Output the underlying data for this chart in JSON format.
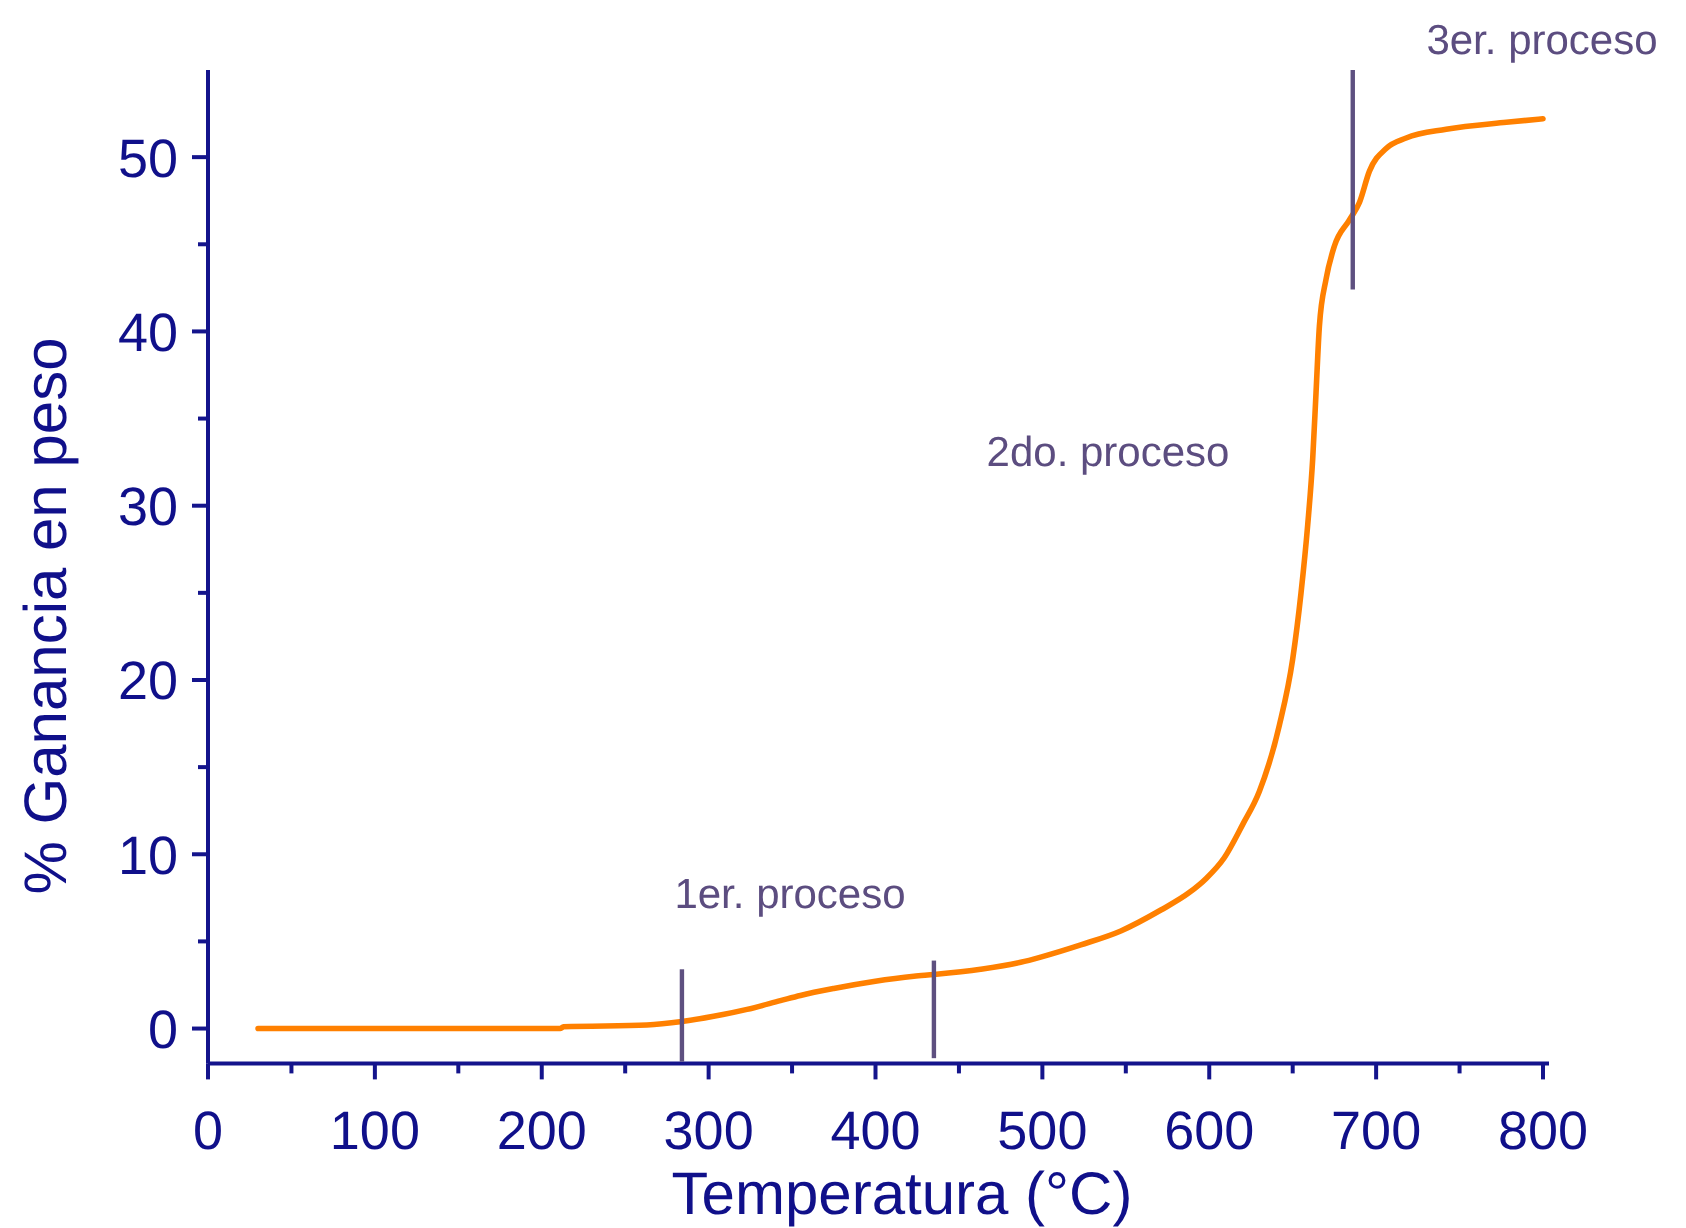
{
  "chart_data": {
    "type": "line",
    "xlabel": "Temperatura (°C)",
    "ylabel": "% Ganancia en peso",
    "xlim": [
      0,
      800
    ],
    "ylim": [
      -2,
      55
    ],
    "xticks": [
      0,
      {
        "value": 50,
        "label": null
      },
      100,
      {
        "value": 150,
        "label": null
      },
      200,
      {
        "value": 250,
        "label": null
      },
      300,
      {
        "value": 350,
        "label": null
      },
      400,
      {
        "value": 450,
        "label": null
      },
      500,
      {
        "value": 550,
        "label": null
      },
      600,
      {
        "value": 650,
        "label": null
      },
      700,
      {
        "value": 750,
        "label": null
      },
      800
    ],
    "yticks": [
      0,
      {
        "value": 5,
        "label": null
      },
      10,
      {
        "value": 15,
        "label": null
      },
      20,
      {
        "value": 25,
        "label": null
      },
      30,
      {
        "value": 35,
        "label": null
      },
      40,
      {
        "value": 45,
        "label": null
      },
      50
    ],
    "series": [
      {
        "color": "#ff8000",
        "x": [
          30,
          100,
          150,
          211,
          213,
          263,
          284,
          303,
          323,
          343,
          355,
          375,
          399,
          423,
          435,
          463,
          487,
          499,
          523,
          547,
          571,
          588,
          598,
          609,
          620,
          630,
          642,
          650,
          655,
          659,
          662,
          664,
          666,
          670,
          675,
          684,
          690,
          696,
          706,
          718,
          742,
          778,
          800
        ],
        "values": [
          0,
          0,
          0,
          0,
          0.1,
          0.2,
          0.4,
          0.7,
          1.1,
          1.6,
          1.9,
          2.3,
          2.7,
          3.0,
          3.1,
          3.4,
          3.8,
          4.1,
          4.8,
          5.6,
          6.8,
          7.8,
          8.6,
          9.8,
          11.7,
          13.6,
          17.4,
          21.2,
          25.0,
          28.9,
          32.7,
          36.5,
          40.3,
          43.0,
          44.9,
          46.4,
          47.4,
          49.2,
          50.5,
          51.1,
          51.6,
          52.0,
          52.2
        ]
      },
      {
        "type": "line",
        "color": "#5e5080",
        "x": [
          284,
          284
        ],
        "values": [
          -1.9,
          3.4
        ]
      },
      {
        "type": "line",
        "color": "#5e5080",
        "x": [
          435,
          435
        ],
        "values": [
          -1.7,
          3.9
        ]
      },
      {
        "type": "line",
        "color": "#5e5080",
        "x": [
          686,
          686
        ],
        "values": [
          42.4,
          55
        ]
      }
    ],
    "annotations": [
      "1er. proceso",
      "2do. proceso",
      "3er. proceso"
    ]
  }
}
